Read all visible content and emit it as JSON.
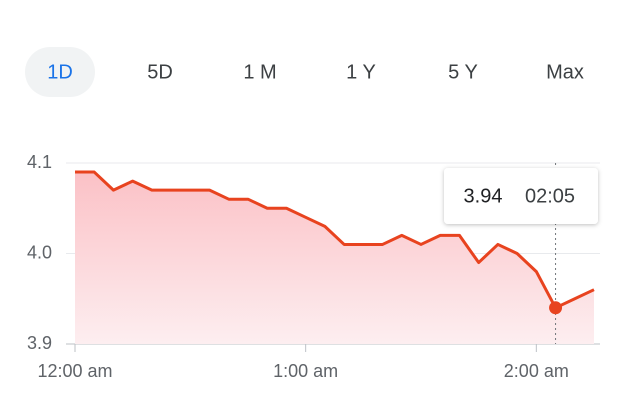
{
  "range_tabs": {
    "options": [
      "1D",
      "5D",
      "1 M",
      "1 Y",
      "5 Y",
      "Max"
    ],
    "selected_index": 0
  },
  "chart_data": {
    "type": "area",
    "x": [
      "00:00",
      "00:05",
      "00:10",
      "00:15",
      "00:20",
      "00:25",
      "00:30",
      "00:35",
      "00:40",
      "00:45",
      "00:50",
      "00:55",
      "01:00",
      "01:05",
      "01:10",
      "01:15",
      "01:20",
      "01:25",
      "01:30",
      "01:35",
      "01:40",
      "01:45",
      "01:50",
      "01:55",
      "02:00",
      "02:05",
      "02:10",
      "02:15"
    ],
    "values": [
      4.09,
      4.09,
      4.07,
      4.08,
      4.07,
      4.07,
      4.07,
      4.07,
      4.06,
      4.06,
      4.05,
      4.05,
      4.04,
      4.03,
      4.01,
      4.01,
      4.01,
      4.02,
      4.01,
      4.02,
      4.02,
      3.99,
      4.01,
      4.0,
      3.98,
      3.94,
      3.95,
      3.96
    ],
    "color": "#e8431f",
    "xlim": [
      "00:00",
      "02:15"
    ],
    "xticks": [
      {
        "value": "00:00",
        "label": "12:00 am"
      },
      {
        "value": "01:00",
        "label": "1:00 am"
      },
      {
        "value": "02:00",
        "label": "2:00 am"
      }
    ],
    "ylim": [
      3.9,
      4.1
    ],
    "yticks": [
      4.1,
      {
        "value": 4,
        "label": "4.0"
      },
      3.9
    ],
    "grid": true,
    "tooltip_index": 25
  }
}
